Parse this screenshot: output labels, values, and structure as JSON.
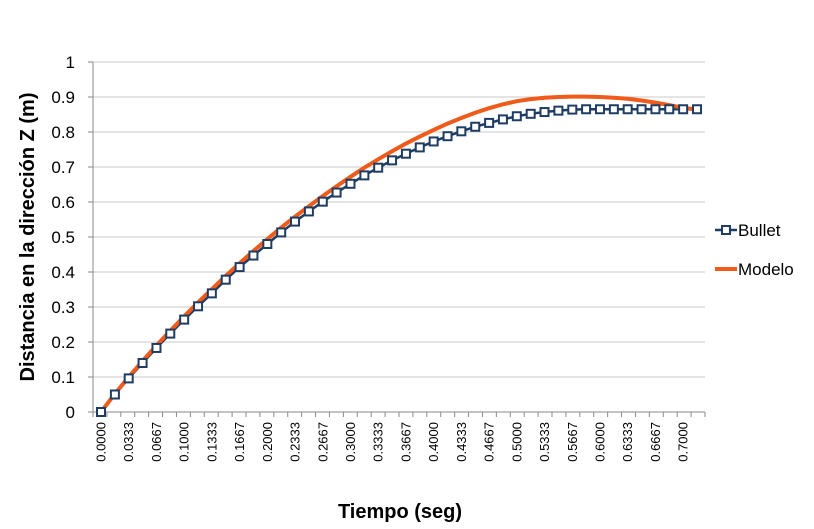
{
  "chart_data": {
    "type": "line",
    "title": "",
    "xlabel": "Tiempo (seg)",
    "ylabel": "Distancia en la dirección Z (m)",
    "ylim": [
      0,
      1
    ],
    "yticks": [
      "0",
      "0.1",
      "0.2",
      "0.3",
      "0.4",
      "0.5",
      "0.6",
      "0.7",
      "0.8",
      "0.9",
      "1"
    ],
    "x_tick_labels": [
      "0.0000",
      "0.0333",
      "0.0667",
      "0.1000",
      "0.1333",
      "0.1667",
      "0.2000",
      "0.2333",
      "0.2667",
      "0.3000",
      "0.3333",
      "0.3667",
      "0.4000",
      "0.4333",
      "0.4667",
      "0.5000",
      "0.5333",
      "0.5667",
      "0.6000",
      "0.6333",
      "0.6667",
      "0.7000"
    ],
    "x": [
      0,
      0.0167,
      0.0333,
      0.05,
      0.0667,
      0.0833,
      0.1,
      0.1167,
      0.1333,
      0.15,
      0.1667,
      0.1833,
      0.2,
      0.2167,
      0.2333,
      0.25,
      0.2667,
      0.2833,
      0.3,
      0.3167,
      0.3333,
      0.35,
      0.3667,
      0.3833,
      0.4,
      0.4167,
      0.4333,
      0.45,
      0.4667,
      0.4833,
      0.5,
      0.5167,
      0.5333,
      0.55,
      0.5667,
      0.5833,
      0.6,
      0.6167,
      0.6333,
      0.65,
      0.6667,
      0.6833,
      0.7,
      0.7167
    ],
    "grid": true,
    "legend_position": "right",
    "series": [
      {
        "name": "Bullet",
        "color": "#1f3d63",
        "marker": "square",
        "values": [
          0,
          0.05,
          0.096,
          0.14,
          0.183,
          0.224,
          0.264,
          0.302,
          0.339,
          0.378,
          0.414,
          0.447,
          0.48,
          0.513,
          0.544,
          0.573,
          0.601,
          0.627,
          0.652,
          0.676,
          0.698,
          0.719,
          0.738,
          0.756,
          0.773,
          0.788,
          0.802,
          0.815,
          0.826,
          0.836,
          0.845,
          0.852,
          0.857,
          0.861,
          0.864,
          0.865,
          0.865,
          0.865,
          0.865,
          0.865,
          0.865,
          0.865,
          0.865,
          0.865
        ]
      },
      {
        "name": "Modelo",
        "color": "#f05a1a",
        "marker": "none",
        "values": [
          0,
          0.052,
          0.1,
          0.146,
          0.19,
          0.232,
          0.273,
          0.313,
          0.351,
          0.389,
          0.425,
          0.46,
          0.494,
          0.527,
          0.558,
          0.588,
          0.617,
          0.645,
          0.672,
          0.698,
          0.722,
          0.745,
          0.767,
          0.787,
          0.806,
          0.824,
          0.84,
          0.855,
          0.868,
          0.879,
          0.888,
          0.894,
          0.898,
          0.9,
          0.901,
          0.901,
          0.9,
          0.898,
          0.895,
          0.89,
          0.884,
          0.877,
          0.869,
          0.864
        ]
      }
    ]
  }
}
